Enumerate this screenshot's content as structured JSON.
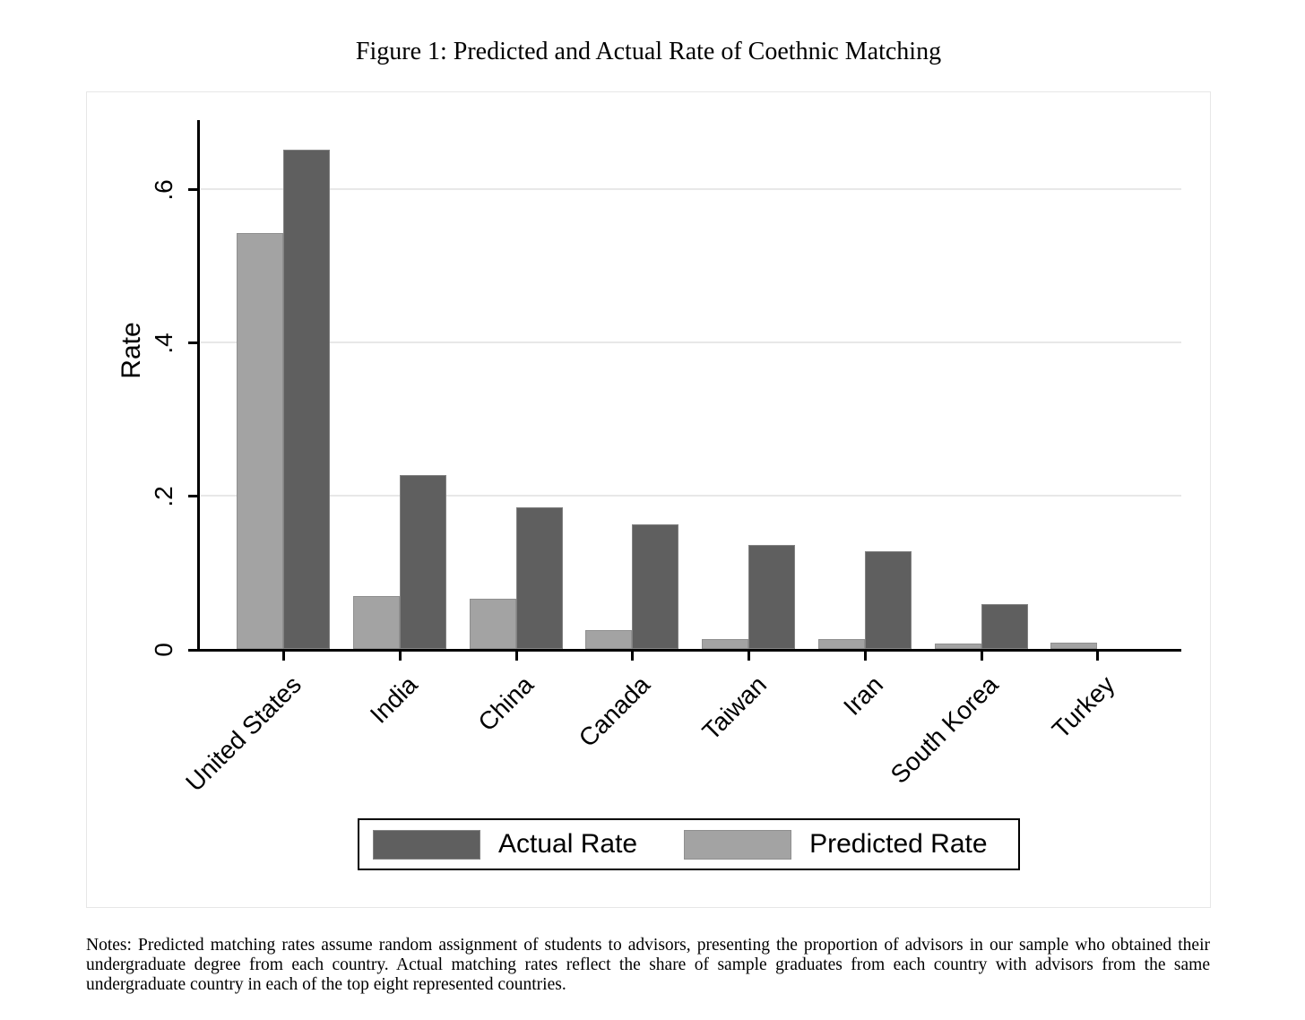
{
  "figure": {
    "title": "Figure 1: Predicted and Actual Rate of Coethnic Matching",
    "notes": "Notes: Predicted matching rates assume random assignment of students to advisors, presenting the proportion of advisors in our sample who obtained their undergraduate degree from each country. Actual matching rates reflect the share of sample graduates from each country with advisors from the same undergraduate country in each of the top eight represented countries."
  },
  "chart_data": {
    "type": "bar",
    "title": "Figure 1: Predicted and Actual Rate of Coethnic Matching",
    "xlabel": "",
    "ylabel": "Rate",
    "ylim": [
      0,
      0.69
    ],
    "grid": true,
    "legend_position": "bottom-center",
    "yticks": [
      {
        "value": 0,
        "label": "0"
      },
      {
        "value": 0.2,
        "label": ".2"
      },
      {
        "value": 0.4,
        "label": ".4"
      },
      {
        "value": 0.6,
        "label": ".6"
      }
    ],
    "categories": [
      "United States",
      "India",
      "China",
      "Canada",
      "Taiwan",
      "Iran",
      "South Korea",
      "Turkey"
    ],
    "series": [
      {
        "name": "Actual Rate",
        "color": "#5f5f5f",
        "border_color": "#828282",
        "values": [
          0.652,
          0.227,
          0.185,
          0.162,
          0.136,
          0.127,
          0.059,
          0
        ]
      },
      {
        "name": "Predicted Rate",
        "color": "#a3a3a3",
        "border_color": "#8f8f8f",
        "values": [
          0.543,
          0.069,
          0.066,
          0.025,
          0.013,
          0.013,
          0.007,
          0.008
        ]
      }
    ]
  },
  "colors": {
    "grid": "#e8e8e8",
    "axis": "#000000",
    "plot_border": "#e7e7e7",
    "background": "#ffffff",
    "text": "#000000"
  }
}
